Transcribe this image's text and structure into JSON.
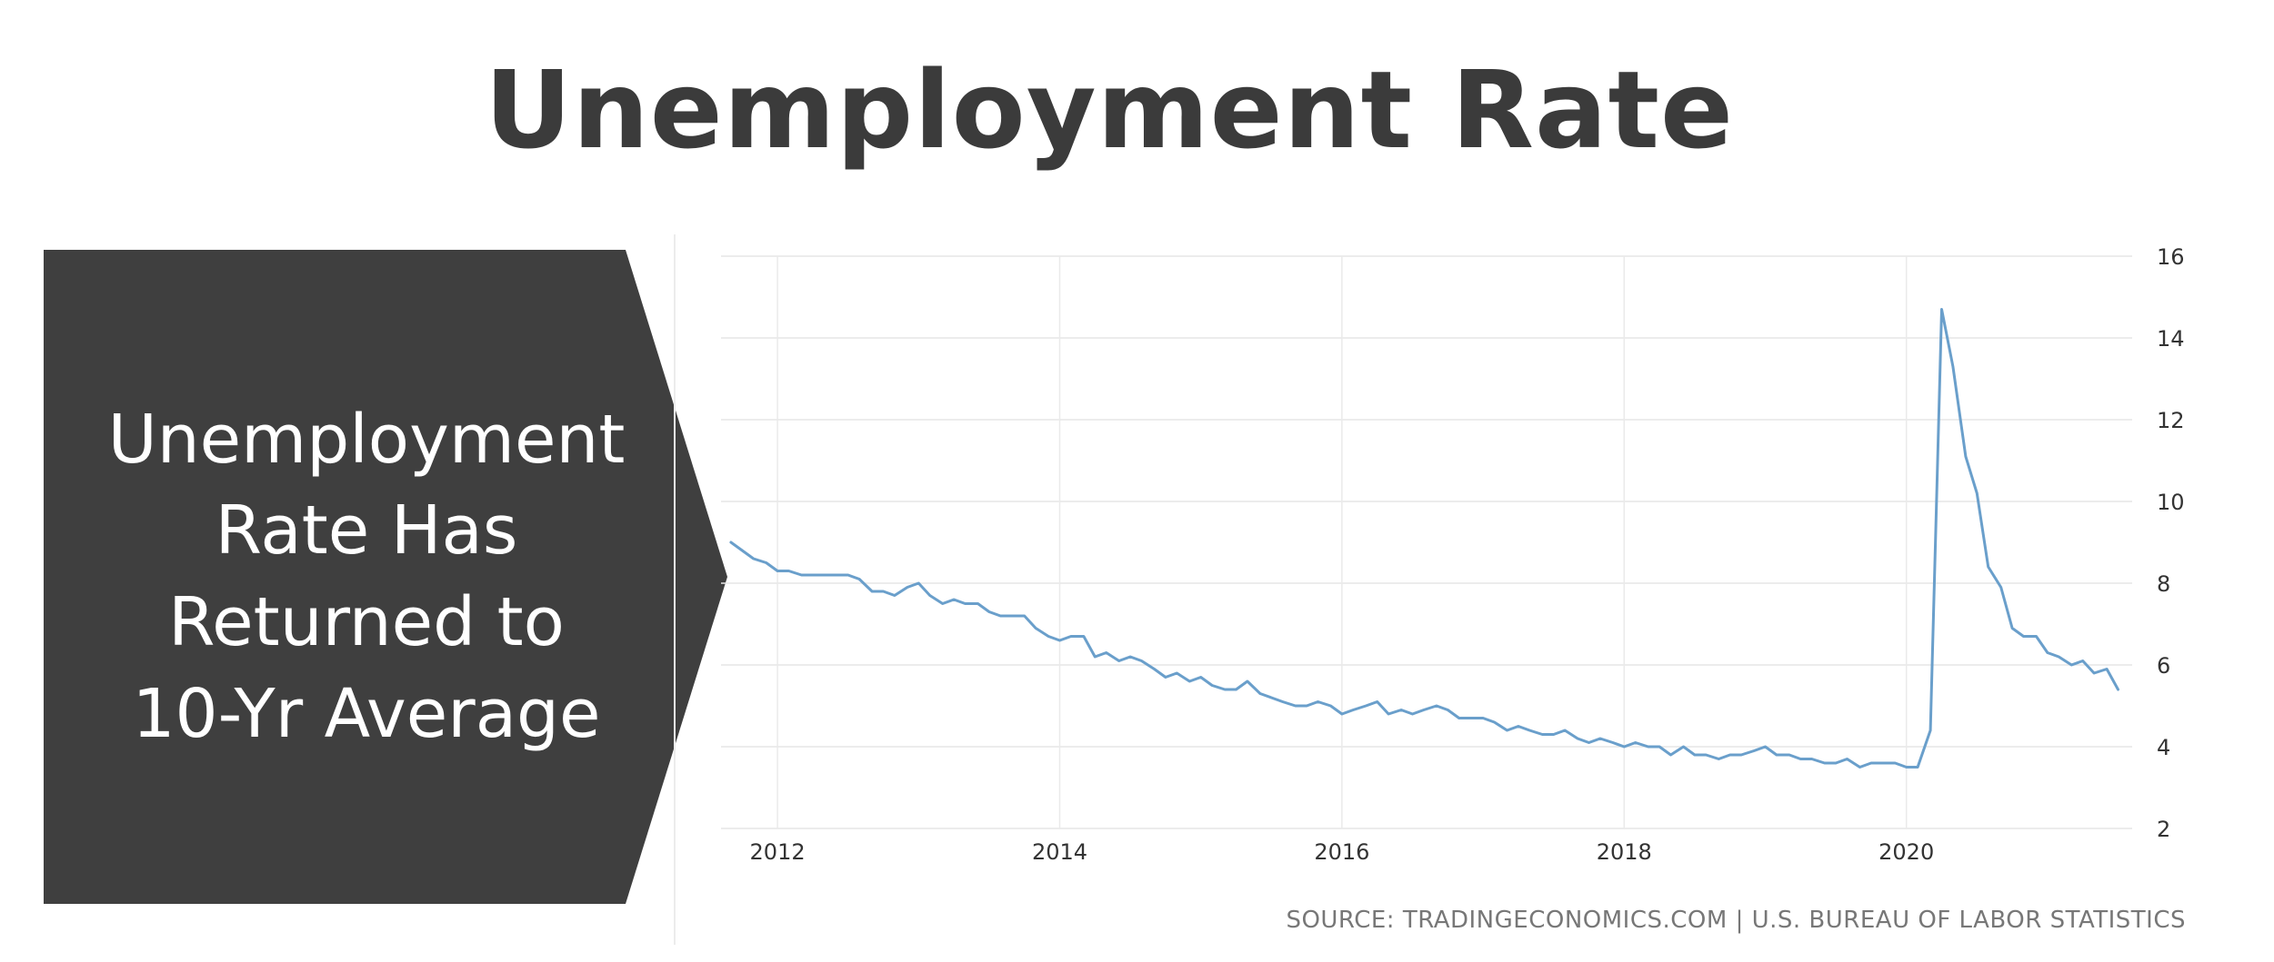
{
  "title": "Unemployment Rate",
  "callout": {
    "text": "Unemployment\nRate Has\nReturned to\n10-Yr Average",
    "color": "#3f3f3f"
  },
  "source": "SOURCE: TRADINGECONOMICS.COM | U.S. BUREAU OF LABOR STATISTICS",
  "chart_data": {
    "type": "line",
    "title": "",
    "xlabel": "",
    "ylabel": "",
    "xlim": [
      2011.6,
      2021.6
    ],
    "ylim": [
      2,
      16
    ],
    "x_ticks": [
      2012,
      2014,
      2016,
      2018,
      2020
    ],
    "y_ticks": [
      2,
      4,
      6,
      8,
      10,
      12,
      14,
      16
    ],
    "grid": true,
    "line_color": "#6a9fcb",
    "series": [
      {
        "x": [
          2011.67,
          2011.75,
          2011.83,
          2011.92,
          2012.0,
          2012.08,
          2012.17,
          2012.25,
          2012.33,
          2012.42,
          2012.5,
          2012.58,
          2012.67,
          2012.75,
          2012.83,
          2012.92,
          2013.0,
          2013.08,
          2013.17,
          2013.25,
          2013.33,
          2013.42,
          2013.5,
          2013.58,
          2013.67,
          2013.75,
          2013.83,
          2013.92,
          2014.0,
          2014.08,
          2014.17,
          2014.25,
          2014.33,
          2014.42,
          2014.5,
          2014.58,
          2014.67,
          2014.75,
          2014.83,
          2014.92,
          2015.0,
          2015.08,
          2015.17,
          2015.25,
          2015.33,
          2015.42,
          2015.5,
          2015.58,
          2015.67,
          2015.75,
          2015.83,
          2015.92,
          2016.0,
          2016.08,
          2016.17,
          2016.25,
          2016.33,
          2016.42,
          2016.5,
          2016.58,
          2016.67,
          2016.75,
          2016.83,
          2016.92,
          2017.0,
          2017.08,
          2017.17,
          2017.25,
          2017.33,
          2017.42,
          2017.5,
          2017.58,
          2017.67,
          2017.75,
          2017.83,
          2017.92,
          2018.0,
          2018.08,
          2018.17,
          2018.25,
          2018.33,
          2018.42,
          2018.5,
          2018.58,
          2018.67,
          2018.75,
          2018.83,
          2018.92,
          2019.0,
          2019.08,
          2019.17,
          2019.25,
          2019.33,
          2019.42,
          2019.5,
          2019.58,
          2019.67,
          2019.75,
          2019.83,
          2019.92,
          2020.0,
          2020.08,
          2020.17,
          2020.25,
          2020.33,
          2020.42,
          2020.5,
          2020.58,
          2020.67,
          2020.75,
          2020.83,
          2020.92,
          2021.0,
          2021.08,
          2021.17,
          2021.25,
          2021.33,
          2021.42,
          2021.5
        ],
        "values": [
          9.0,
          8.8,
          8.6,
          8.5,
          8.3,
          8.3,
          8.2,
          8.2,
          8.2,
          8.2,
          8.2,
          8.1,
          7.8,
          7.8,
          7.7,
          7.9,
          8.0,
          7.7,
          7.5,
          7.6,
          7.5,
          7.5,
          7.3,
          7.2,
          7.2,
          7.2,
          6.9,
          6.7,
          6.6,
          6.7,
          6.7,
          6.2,
          6.3,
          6.1,
          6.2,
          6.1,
          5.9,
          5.7,
          5.8,
          5.6,
          5.7,
          5.5,
          5.4,
          5.4,
          5.6,
          5.3,
          5.2,
          5.1,
          5.0,
          5.0,
          5.1,
          5.0,
          4.8,
          4.9,
          5.0,
          5.1,
          4.8,
          4.9,
          4.8,
          4.9,
          5.0,
          4.9,
          4.7,
          4.7,
          4.7,
          4.6,
          4.4,
          4.5,
          4.4,
          4.3,
          4.3,
          4.4,
          4.2,
          4.1,
          4.2,
          4.1,
          4.0,
          4.1,
          4.0,
          4.0,
          3.8,
          4.0,
          3.8,
          3.8,
          3.7,
          3.8,
          3.8,
          3.9,
          4.0,
          3.8,
          3.8,
          3.7,
          3.7,
          3.6,
          3.6,
          3.7,
          3.5,
          3.6,
          3.6,
          3.6,
          3.5,
          3.5,
          4.4,
          14.7,
          13.3,
          11.1,
          10.2,
          8.4,
          7.9,
          6.9,
          6.7,
          6.7,
          6.3,
          6.2,
          6.0,
          6.1,
          5.8,
          5.9,
          5.4
        ]
      }
    ]
  }
}
